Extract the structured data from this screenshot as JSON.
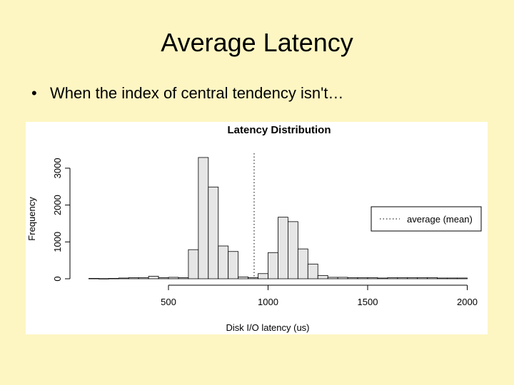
{
  "slide": {
    "title": "Average Latency",
    "bullet_symbol": "•",
    "bullet_text": "When the index of central tendency isn't…"
  },
  "colors": {
    "background": "#fdf6c3",
    "bar_fill": "#e6e6e6",
    "bar_stroke": "#000000"
  },
  "chart_data": {
    "type": "histogram",
    "title": "Latency Distribution",
    "xlabel": "Disk I/O latency (us)",
    "ylabel": "Frequency",
    "xlim": [
      50,
      2000
    ],
    "ylim": [
      0,
      3300
    ],
    "x_ticks": [
      500,
      1000,
      1500,
      2000
    ],
    "y_ticks": [
      0,
      1000,
      2000,
      3000
    ],
    "bin_width": 50,
    "bin_starts": [
      100,
      150,
      200,
      250,
      300,
      350,
      400,
      450,
      500,
      550,
      600,
      650,
      700,
      750,
      800,
      850,
      900,
      950,
      1000,
      1050,
      1100,
      1150,
      1200,
      1250,
      1300,
      1350,
      1400,
      1450,
      1500,
      1550,
      1600,
      1650,
      1700,
      1750,
      1800,
      1850,
      1900,
      1950
    ],
    "counts": [
      10,
      5,
      10,
      20,
      30,
      30,
      70,
      30,
      40,
      30,
      790,
      3290,
      2490,
      890,
      740,
      50,
      30,
      140,
      710,
      1670,
      1550,
      810,
      400,
      90,
      40,
      40,
      30,
      30,
      30,
      20,
      30,
      30,
      30,
      30,
      30,
      20,
      20,
      20
    ],
    "mean_line": {
      "value": 930,
      "style": "dotted"
    },
    "legend": {
      "position": "right",
      "entries": [
        "average (mean)"
      ]
    }
  }
}
